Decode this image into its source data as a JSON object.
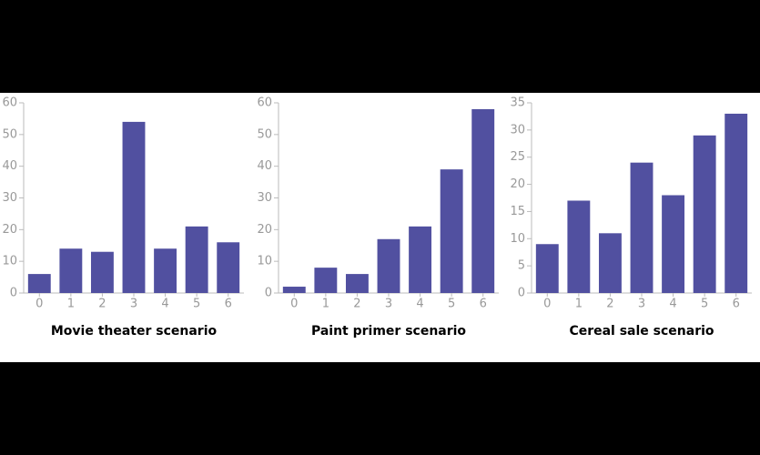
{
  "chart_data": [
    {
      "type": "bar",
      "title": "Movie theater scenario",
      "categories": [
        "0",
        "1",
        "2",
        "3",
        "4",
        "5",
        "6"
      ],
      "values": [
        6,
        14,
        13,
        54,
        14,
        21,
        16
      ],
      "color": "#5150a0",
      "ylim": [
        0,
        60
      ],
      "yticks": [
        0,
        10,
        20,
        30,
        40,
        50,
        60
      ]
    },
    {
      "type": "bar",
      "title": "Paint primer scenario",
      "categories": [
        "0",
        "1",
        "2",
        "3",
        "4",
        "5",
        "6"
      ],
      "values": [
        2,
        8,
        6,
        17,
        21,
        39,
        58
      ],
      "color": "#5150a0",
      "ylim": [
        0,
        60
      ],
      "yticks": [
        0,
        10,
        20,
        30,
        40,
        50,
        60
      ]
    },
    {
      "type": "bar",
      "title": "Cereal sale scenario",
      "categories": [
        "0",
        "1",
        "2",
        "3",
        "4",
        "5",
        "6"
      ],
      "values": [
        9,
        17,
        11,
        24,
        18,
        29,
        33
      ],
      "color": "#5150a0",
      "ylim": [
        0,
        35
      ],
      "yticks": [
        0,
        5,
        10,
        15,
        20,
        25,
        30,
        35
      ]
    }
  ]
}
